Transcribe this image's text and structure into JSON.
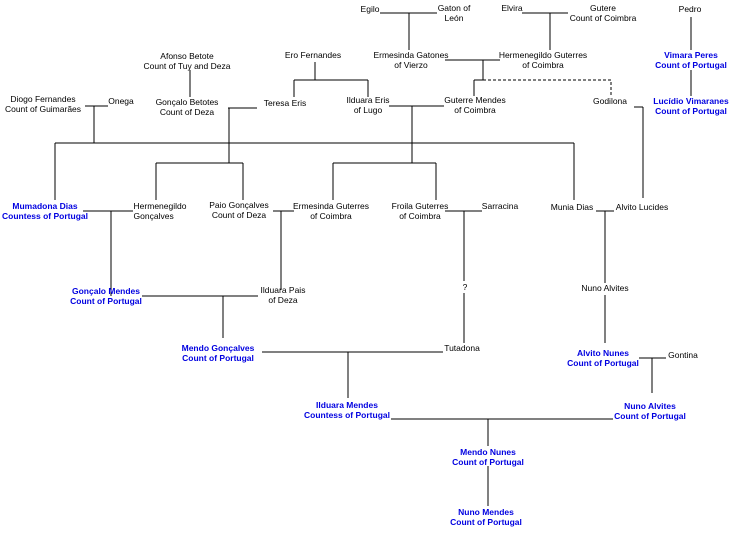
{
  "colors": {
    "count": "#0000e0",
    "other": "#000000",
    "line": "#000000"
  },
  "people": {
    "egilo": {
      "name": "Egilo",
      "title": ""
    },
    "gaton": {
      "name": "Gaton of",
      "title": "León"
    },
    "elvira": {
      "name": "Elvira",
      "title": ""
    },
    "gutere": {
      "name": "Gutere",
      "title": "Count of Coimbra"
    },
    "pedro": {
      "name": "Pedro",
      "title": ""
    },
    "afonso": {
      "name": "Afonso Betote",
      "title": "Count of Tuy and Deza"
    },
    "ero": {
      "name": "Ero Fernandes",
      "title": ""
    },
    "ermesinda_gatones": {
      "name": "Ermesinda Gatones",
      "title": "of Vierzo"
    },
    "hermenegildo_guterres": {
      "name": "Hermenegildo Guterres",
      "title": "of Coimbra"
    },
    "vimara": {
      "name": "Vimara Peres",
      "title": "Count of Portugal"
    },
    "diogo": {
      "name": "Diogo Fernandes",
      "title": "Count of Guimarães"
    },
    "onega": {
      "name": "Onega",
      "title": ""
    },
    "goncalo_betotes": {
      "name": "Gonçalo Betotes",
      "title": "Count of Deza"
    },
    "teresa": {
      "name": "Teresa Eris",
      "title": ""
    },
    "ilduara_eris": {
      "name": "Ilduara Eris",
      "title": "of Lugo"
    },
    "guterre": {
      "name": "Guterre Mendes",
      "title": "of Coimbra"
    },
    "godilona": {
      "name": "Godilona",
      "title": ""
    },
    "lucidio": {
      "name": "Lucídio Vimaranes",
      "title": "Count of Portugal"
    },
    "mumadona": {
      "name": "Mumadona Dias",
      "title": "Countess of Portugal"
    },
    "hermenegildo_goncalves": {
      "name": "Hermenegildo",
      "title": "Gonçalves"
    },
    "paio": {
      "name": "Paio Gonçalves",
      "title": "Count of Deza"
    },
    "ermesinda_guterres": {
      "name": "Ermesinda Guterres",
      "title": "of Coimbra"
    },
    "froila": {
      "name": "Froila Guterres",
      "title": "of Coimbra"
    },
    "sarracina": {
      "name": "Sarracina",
      "title": ""
    },
    "munia": {
      "name": "Munia Dias",
      "title": ""
    },
    "alvito_lucides": {
      "name": "Alvito Lucides",
      "title": ""
    },
    "goncalo_mendes": {
      "name": "Gonçalo Mendes",
      "title": "Count of Portugal"
    },
    "ilduara_pais": {
      "name": "Ilduara Pais",
      "title": "of Deza"
    },
    "unknown": {
      "name": "?",
      "title": ""
    },
    "nuno_alvites_1": {
      "name": "Nuno Alvites",
      "title": ""
    },
    "mendo_goncalves": {
      "name": "Mendo Gonçalves",
      "title": "Count of Portugal"
    },
    "tutadona": {
      "name": "Tutadona",
      "title": ""
    },
    "alvito_nunes": {
      "name": "Alvito Nunes",
      "title": "Count of Portugal"
    },
    "gontina": {
      "name": "Gontina",
      "title": ""
    },
    "ilduara_mendes": {
      "name": "Ilduara Mendes",
      "title": "Countess of Portugal"
    },
    "nuno_alvites_2": {
      "name": "Nuno Alvites",
      "title": "Count of Portugal"
    },
    "mendo_nunes": {
      "name": "Mendo Nunes",
      "title": "Count of Portugal"
    },
    "nuno_mendes": {
      "name": "Nuno Mendes",
      "title": "Count of Portugal"
    }
  }
}
